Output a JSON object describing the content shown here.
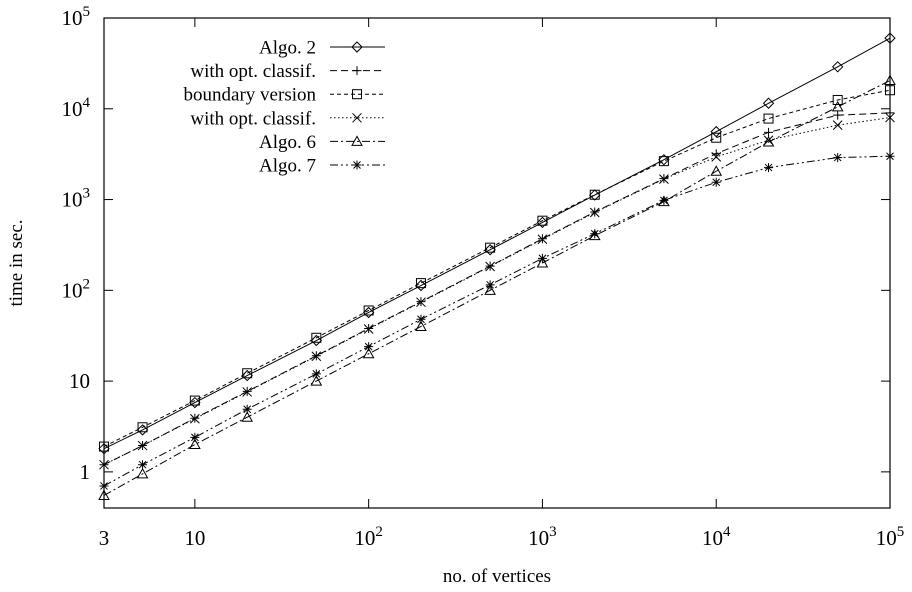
{
  "chart_data": {
    "type": "line",
    "title": "",
    "xlabel": "no. of vertices",
    "ylabel": "time in sec.",
    "xscale": "log",
    "yscale": "log",
    "xlim": [
      3,
      100000
    ],
    "ylim": [
      0.4,
      100000
    ],
    "grid": false,
    "legend_position": "top-left",
    "x_ticks": [
      {
        "v": 3,
        "base": "3",
        "exp": ""
      },
      {
        "v": 10,
        "base": "10",
        "exp": ""
      },
      {
        "v": 100,
        "base": "10",
        "exp": "2"
      },
      {
        "v": 1000,
        "base": "10",
        "exp": "3"
      },
      {
        "v": 10000,
        "base": "10",
        "exp": "4"
      },
      {
        "v": 100000,
        "base": "10",
        "exp": "5"
      }
    ],
    "y_ticks": [
      {
        "v": 1,
        "base": "1",
        "exp": ""
      },
      {
        "v": 10,
        "base": "10",
        "exp": ""
      },
      {
        "v": 100,
        "base": "10",
        "exp": "2"
      },
      {
        "v": 1000,
        "base": "10",
        "exp": "3"
      },
      {
        "v": 10000,
        "base": "10",
        "exp": "4"
      },
      {
        "v": 100000,
        "base": "10",
        "exp": "5"
      }
    ],
    "series": [
      {
        "name": "Algo. 2",
        "marker": "diamond",
        "dash": "",
        "x": [
          3,
          5,
          10,
          20,
          50,
          100,
          200,
          500,
          1000,
          2000,
          5000,
          10000,
          20000,
          50000,
          100000
        ],
        "y": [
          1.8,
          2.9,
          5.8,
          11.5,
          28,
          57,
          113,
          280,
          560,
          1120,
          2750,
          5600,
          11500,
          29000,
          60000
        ]
      },
      {
        "name": "with opt. classif.",
        "marker": "plus",
        "dash": "7,4",
        "x": [
          3,
          5,
          10,
          20,
          50,
          100,
          200,
          500,
          1000,
          2000,
          5000,
          10000,
          20000,
          50000,
          100000
        ],
        "y": [
          1.2,
          1.95,
          3.9,
          7.7,
          19,
          38,
          75,
          185,
          370,
          730,
          1700,
          3200,
          5500,
          8500,
          9000
        ]
      },
      {
        "name": "boundary version",
        "marker": "square",
        "dash": "4,3",
        "x": [
          3,
          5,
          10,
          20,
          50,
          100,
          200,
          500,
          1000,
          2000,
          5000,
          10000,
          20000,
          50000,
          100000
        ],
        "y": [
          1.9,
          3.1,
          6.1,
          12.2,
          30,
          60,
          120,
          295,
          585,
          1130,
          2650,
          4800,
          7800,
          12500,
          16000
        ]
      },
      {
        "name": "with opt. classif.",
        "marker": "cross",
        "dash": "1.5,2.5",
        "x": [
          3,
          5,
          10,
          20,
          50,
          100,
          200,
          500,
          1000,
          2000,
          5000,
          10000,
          20000,
          50000,
          100000
        ],
        "y": [
          1.2,
          1.95,
          3.85,
          7.6,
          18.8,
          37.5,
          74,
          183,
          365,
          720,
          1680,
          2950,
          4500,
          6600,
          8000
        ]
      },
      {
        "name": "Algo. 6",
        "marker": "triangle",
        "dash": "8,3,2,3",
        "x": [
          3,
          5,
          10,
          20,
          50,
          100,
          200,
          500,
          1000,
          2000,
          5000,
          10000,
          20000,
          50000,
          100000
        ],
        "y": [
          0.55,
          0.95,
          2.0,
          4.0,
          10,
          20,
          40,
          100,
          200,
          400,
          950,
          2050,
          4300,
          10500,
          20500
        ]
      },
      {
        "name": "Algo. 7",
        "marker": "star",
        "dash": "8,3,2,3,2,3",
        "x": [
          3,
          5,
          10,
          20,
          50,
          100,
          200,
          500,
          1000,
          2000,
          5000,
          10000,
          20000,
          50000,
          100000
        ],
        "y": [
          0.7,
          1.2,
          2.4,
          4.9,
          12,
          24,
          48,
          115,
          225,
          420,
          980,
          1550,
          2250,
          2900,
          3000
        ]
      }
    ]
  }
}
